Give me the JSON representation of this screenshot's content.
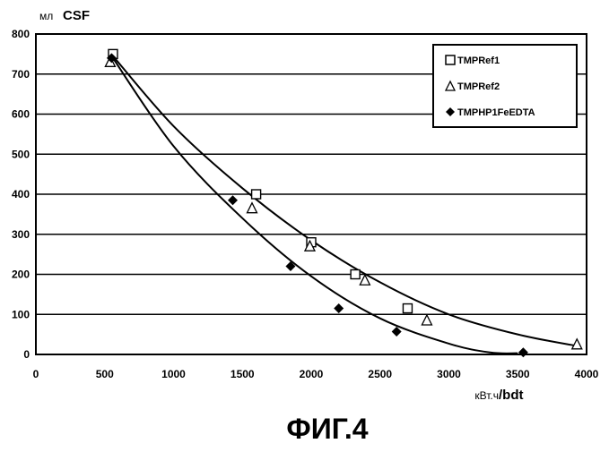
{
  "chart_data": {
    "type": "scatter",
    "title": "",
    "ylabel_prefix": "мл",
    "ylabel_main": "CSF",
    "xlabel_prefix": "кВт.ч",
    "xlabel_main": "/bdt",
    "xlim": [
      0,
      4000
    ],
    "ylim": [
      0,
      800
    ],
    "x_ticks": [
      0,
      500,
      1000,
      1500,
      2000,
      2500,
      3000,
      3500,
      4000
    ],
    "y_ticks": [
      0,
      100,
      200,
      300,
      400,
      500,
      600,
      700,
      800
    ],
    "grid": "horizontal",
    "legend_position": "top-right",
    "series": [
      {
        "name": "TMPRef1",
        "marker": "square",
        "points": [
          [
            560,
            750
          ],
          [
            1600,
            400
          ],
          [
            2000,
            280
          ],
          [
            2320,
            200
          ],
          [
            2700,
            115
          ]
        ]
      },
      {
        "name": "TMPRef2",
        "marker": "triangle",
        "points": [
          [
            540,
            730
          ],
          [
            1570,
            365
          ],
          [
            1990,
            270
          ],
          [
            2390,
            185
          ],
          [
            2840,
            85
          ],
          [
            3930,
            25
          ]
        ]
      },
      {
        "name": "TMPHP1FeEDTA",
        "marker": "diamond",
        "points": [
          [
            550,
            740
          ],
          [
            1430,
            385
          ],
          [
            1850,
            220
          ],
          [
            2200,
            115
          ],
          [
            2620,
            57
          ],
          [
            3540,
            5
          ]
        ]
      }
    ],
    "trendlines": [
      {
        "points": [
          [
            560,
            745
          ],
          [
            1000,
            570
          ],
          [
            1500,
            415
          ],
          [
            2000,
            285
          ],
          [
            2500,
            180
          ],
          [
            3000,
            100
          ],
          [
            3500,
            50
          ],
          [
            3950,
            20
          ]
        ]
      },
      {
        "points": [
          [
            550,
            745
          ],
          [
            1000,
            520
          ],
          [
            1500,
            340
          ],
          [
            2000,
            195
          ],
          [
            2500,
            90
          ],
          [
            3000,
            27
          ],
          [
            3300,
            5
          ],
          [
            3500,
            3
          ]
        ]
      }
    ]
  },
  "caption": "ФИГ.4"
}
